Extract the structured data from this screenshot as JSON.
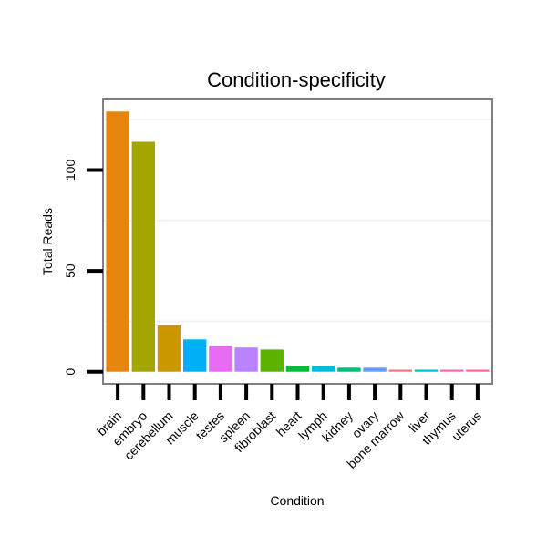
{
  "chart_data": {
    "type": "bar",
    "title": "Condition-specificity",
    "xlabel": "Condition",
    "ylabel": "Total Reads",
    "categories": [
      "brain",
      "embryo",
      "cerebellum",
      "muscle",
      "testes",
      "spleen",
      "fibroblast",
      "heart",
      "lymph",
      "kidney",
      "ovary",
      "bone marrow",
      "liver",
      "thymus",
      "uterus"
    ],
    "values": [
      129,
      114,
      23,
      16,
      13,
      12,
      11,
      3,
      3,
      2,
      2,
      1,
      1,
      1,
      1
    ],
    "colors": [
      "#E6850E",
      "#A3A500",
      "#C99800",
      "#00B0F6",
      "#E76BF3",
      "#B983FF",
      "#5BB300",
      "#00BA38",
      "#00BCD8",
      "#00BF7D",
      "#619CFF",
      "#F8766D",
      "#00BFC4",
      "#FD61D1",
      "#FF67A4"
    ],
    "yticks": [
      0,
      50,
      100
    ],
    "ylim": [
      -6,
      135
    ],
    "grid": true,
    "legend": "none"
  }
}
